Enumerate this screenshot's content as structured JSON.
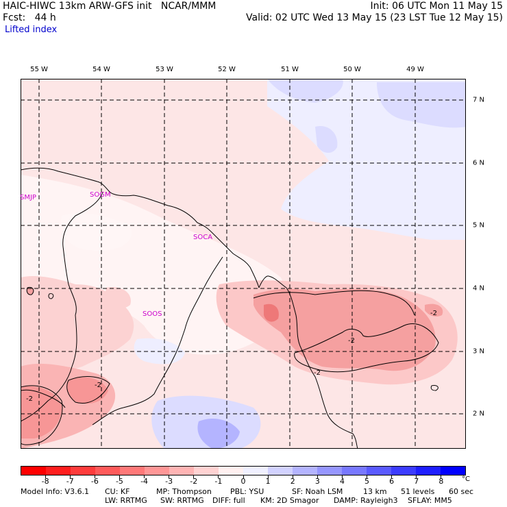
{
  "header": {
    "title": "HAIC-HIWC 13km ARW-GFS init   NCAR/MMM",
    "init": "Init: 06 UTC Mon 11 May 15",
    "fcst": "Fcst:   44 h",
    "valid": "Valid: 02 UTC Wed 13 May 15 (23 LST Tue 12 May 15)",
    "field": "Lifted index"
  },
  "axes": {
    "longitudes": [
      "55 W",
      "54 W",
      "53 W",
      "52 W",
      "51 W",
      "50 W",
      "49 W"
    ],
    "latitudes": [
      "7 N",
      "6 N",
      "5 N",
      "4 N",
      "3 N",
      "2 N"
    ]
  },
  "stations": [
    {
      "id": "SMJP"
    },
    {
      "id": "SOGM"
    },
    {
      "id": "SOCA"
    },
    {
      "id": "SOOS"
    }
  ],
  "contour_labels": [
    "-2",
    "-2",
    "-2",
    "-2",
    "-2"
  ],
  "colorbar": {
    "labels": [
      "-8",
      "-7",
      "-6",
      "-5",
      "-4",
      "-3",
      "-2",
      "-1",
      "0",
      "1",
      "2",
      "3",
      "4",
      "5",
      "6",
      "7",
      "8"
    ],
    "unit": "°C",
    "colors": [
      "#ff0000",
      "#ff1e1e",
      "#ff3c3c",
      "#ff5a5a",
      "#ff7878",
      "#ff9696",
      "#ffb4b4",
      "#ffd2d2",
      "#fff0f0",
      "#f0f0ff",
      "#d2d2ff",
      "#b4b4ff",
      "#9696ff",
      "#7878ff",
      "#5a5aff",
      "#3c3cff",
      "#1e1eff",
      "#0000ff"
    ]
  },
  "footer": {
    "line1": {
      "model_info": "Model Info: V3.6.1",
      "cu": "CU: KF",
      "mp": "MP: Thompson",
      "pbl": "PBL: YSU",
      "sf": "SF: Noah LSM",
      "res": "13 km",
      "levels": "51 levels",
      "dt": "60 sec"
    },
    "line2": {
      "lw": "LW: RRTMG",
      "sw": "SW: RRTMG",
      "diff": "DIFF: full",
      "km": "KM: 2D Smagor",
      "damp": "DAMP: Rayleigh3",
      "sflay": "SFLAY: MM5"
    }
  }
}
